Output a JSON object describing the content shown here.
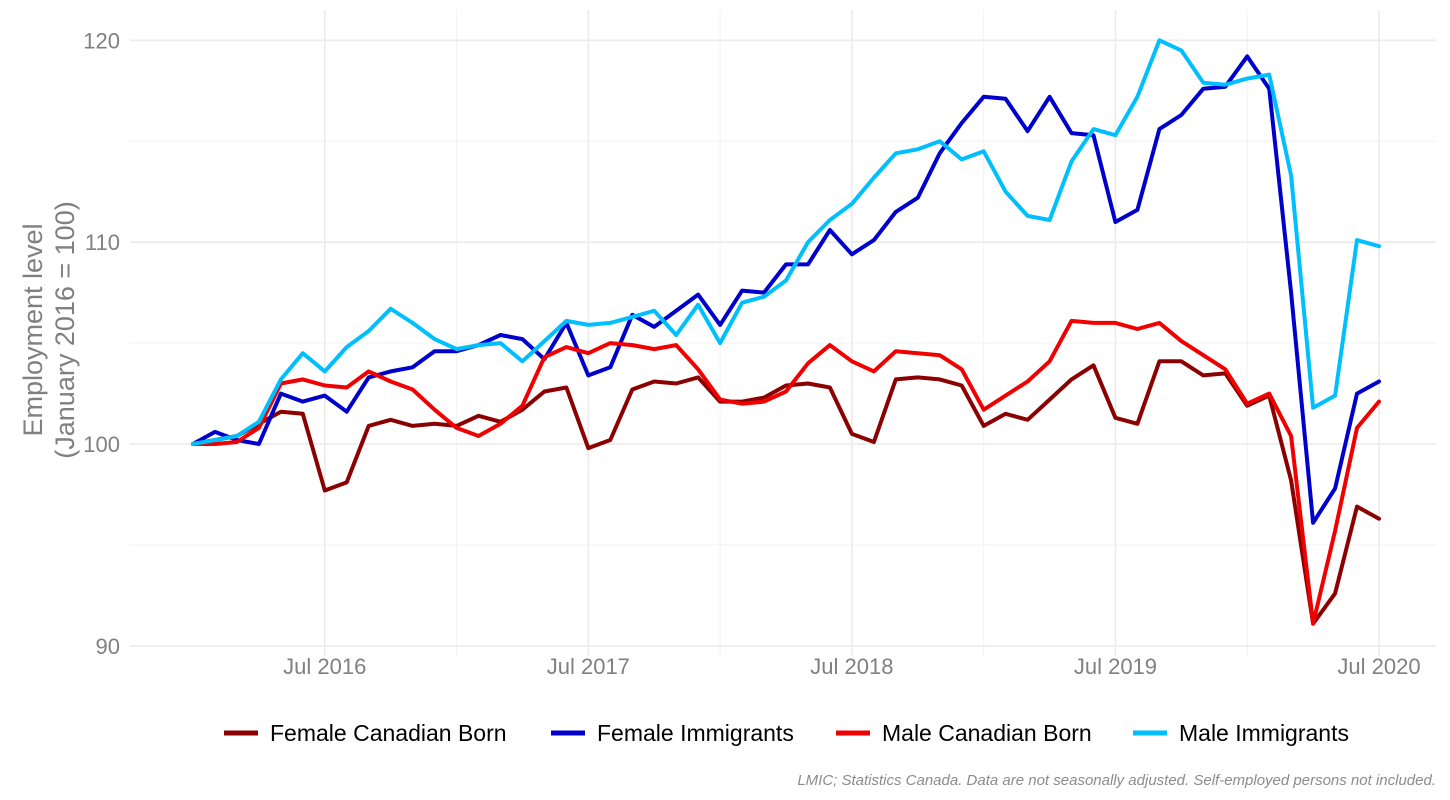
{
  "chart_data": {
    "type": "line",
    "title": "",
    "ylabel_line1": "Employment level",
    "ylabel_line2": "(January 2016 = 100)",
    "xlabel": "",
    "ylim": [
      89.5,
      121.5
    ],
    "yticks": [
      90,
      100,
      110,
      120
    ],
    "x_start": "2016-01",
    "x_end": "2020-07",
    "x_ticks": [
      {
        "month": "2016-07",
        "label": "Jul 2016"
      },
      {
        "month": "2017-07",
        "label": "Jul 2017"
      },
      {
        "month": "2018-07",
        "label": "Jul 2018"
      },
      {
        "month": "2019-07",
        "label": "Jul 2019"
      },
      {
        "month": "2020-07",
        "label": "Jul 2020"
      }
    ],
    "x_minor_ticks": [
      "2017-01",
      "2018-01",
      "2019-01",
      "2020-01"
    ],
    "legend_position": "bottom",
    "caption": "LMIC; Statistics Canada. Data are not seasonally adjusted. Self-employed persons not included.",
    "series": [
      {
        "name": "Female Canadian Born",
        "color": "#8B0000",
        "values": [
          100,
          100.2,
          100.4,
          101.0,
          101.6,
          101.5,
          97.7,
          98.1,
          100.9,
          101.2,
          100.9,
          101.0,
          100.9,
          101.4,
          101.1,
          101.7,
          102.6,
          102.8,
          99.8,
          100.2,
          102.7,
          103.1,
          103.0,
          103.3,
          102.1,
          102.1,
          102.3,
          102.9,
          103.0,
          102.8,
          100.5,
          100.1,
          103.2,
          103.3,
          103.2,
          102.9,
          100.9,
          101.5,
          101.2,
          102.2,
          103.2,
          103.9,
          101.3,
          101.0,
          104.1,
          104.1,
          103.4,
          103.5,
          101.9,
          102.4,
          98.2,
          91.1,
          92.6,
          96.9,
          96.3
        ]
      },
      {
        "name": "Female Immigrants",
        "color": "#0000CD",
        "values": [
          100,
          100.6,
          100.2,
          100.0,
          102.5,
          102.1,
          102.4,
          101.6,
          103.3,
          103.6,
          103.8,
          104.6,
          104.6,
          104.9,
          105.4,
          105.2,
          104.2,
          106.0,
          103.4,
          103.8,
          106.4,
          105.8,
          106.6,
          107.4,
          105.9,
          107.6,
          107.5,
          108.9,
          108.9,
          110.6,
          109.4,
          110.1,
          111.5,
          112.2,
          114.4,
          115.9,
          117.2,
          117.1,
          115.5,
          117.2,
          115.4,
          115.3,
          111.0,
          111.6,
          115.6,
          116.3,
          117.6,
          117.7,
          119.2,
          117.6,
          107.5,
          96.1,
          97.8,
          102.5,
          103.1
        ]
      },
      {
        "name": "Male Canadian Born",
        "color": "#F00000",
        "values": [
          100,
          100.0,
          100.1,
          100.8,
          103.0,
          103.2,
          102.9,
          102.8,
          103.6,
          103.1,
          102.7,
          101.7,
          100.8,
          100.4,
          101.0,
          101.9,
          104.3,
          104.8,
          104.5,
          105.0,
          104.9,
          104.7,
          104.9,
          103.7,
          102.2,
          102.0,
          102.1,
          102.6,
          104.0,
          104.9,
          104.1,
          103.6,
          104.6,
          104.5,
          104.4,
          103.7,
          101.7,
          102.4,
          103.1,
          104.1,
          106.1,
          106.0,
          106.0,
          105.7,
          106.0,
          105.1,
          104.4,
          103.7,
          102.0,
          102.5,
          100.4,
          91.1,
          95.7,
          100.8,
          102.1
        ]
      },
      {
        "name": "Male Immigrants",
        "color": "#00BFFF",
        "values": [
          100,
          100.2,
          100.4,
          101.1,
          103.2,
          104.5,
          103.6,
          104.8,
          105.6,
          106.7,
          106.0,
          105.2,
          104.7,
          104.9,
          105.0,
          104.1,
          105.1,
          106.1,
          105.9,
          106.0,
          106.3,
          106.6,
          105.4,
          106.9,
          105.0,
          107.0,
          107.3,
          108.1,
          110.0,
          111.1,
          111.9,
          113.2,
          114.4,
          114.6,
          115.0,
          114.1,
          114.5,
          112.5,
          111.3,
          111.1,
          114.0,
          115.6,
          115.3,
          117.2,
          120.0,
          119.5,
          117.9,
          117.8,
          118.1,
          118.3,
          113.3,
          101.8,
          102.4,
          110.1,
          109.8
        ]
      }
    ]
  }
}
